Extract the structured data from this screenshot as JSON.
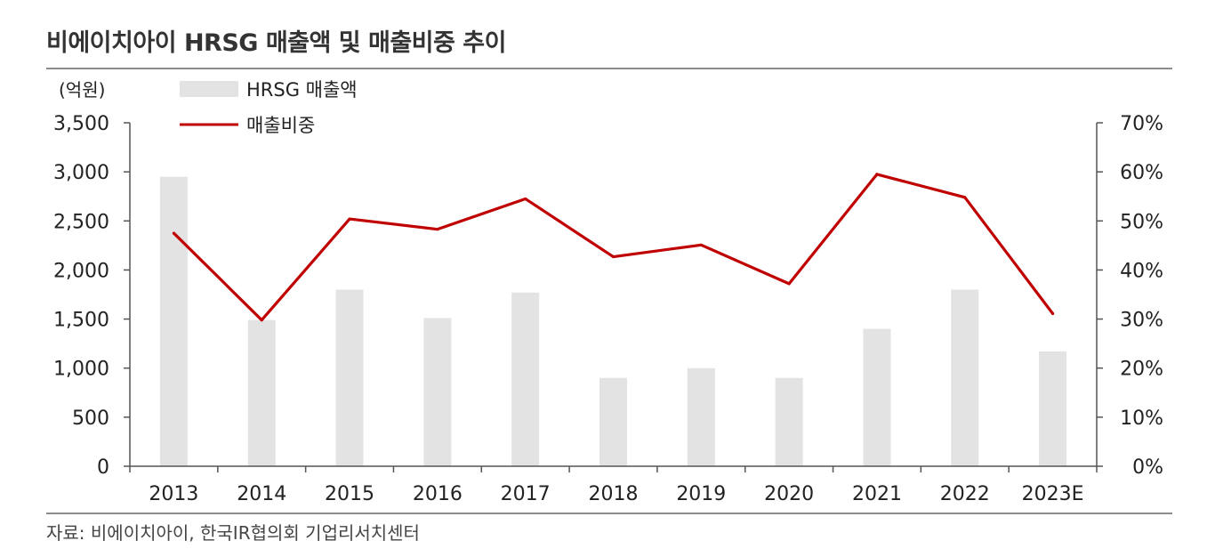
{
  "title": "비에이치아이 HRSG 매출액 및 매출비중 추이",
  "source": "자료: 비에이치아이, 한국IR협의회 기업리서치센터",
  "colors": {
    "bar": "#e3e3e3",
    "line": "#c00000",
    "rule": "#8c8c8c",
    "axis": "#555555"
  },
  "chart_data": {
    "type": "bar",
    "categories": [
      "2013",
      "2014",
      "2015",
      "2016",
      "2017",
      "2018",
      "2019",
      "2020",
      "2021",
      "2022",
      "2023E"
    ],
    "y_unit_label": "(억원)",
    "ylim": [
      0,
      3500
    ],
    "y_ticks": [
      "0",
      "500",
      "1,000",
      "1,500",
      "2,000",
      "2,500",
      "3,000",
      "3,500"
    ],
    "y2lim": [
      0,
      70
    ],
    "y2_ticks": [
      "0%",
      "10%",
      "20%",
      "30%",
      "40%",
      "50%",
      "60%",
      "70%"
    ],
    "grid": false,
    "legend_position": "top-left",
    "series": [
      {
        "name": "HRSG 매출액",
        "kind": "bar",
        "axis": "left",
        "values": [
          2950,
          1490,
          1800,
          1510,
          1770,
          900,
          1000,
          900,
          1400,
          1800,
          1170
        ]
      },
      {
        "name": "매출비중",
        "kind": "line",
        "axis": "right",
        "values": [
          47.5,
          29.8,
          50.4,
          48.3,
          54.5,
          42.7,
          45.1,
          37.2,
          59.5,
          54.8,
          31.1
        ]
      }
    ]
  }
}
